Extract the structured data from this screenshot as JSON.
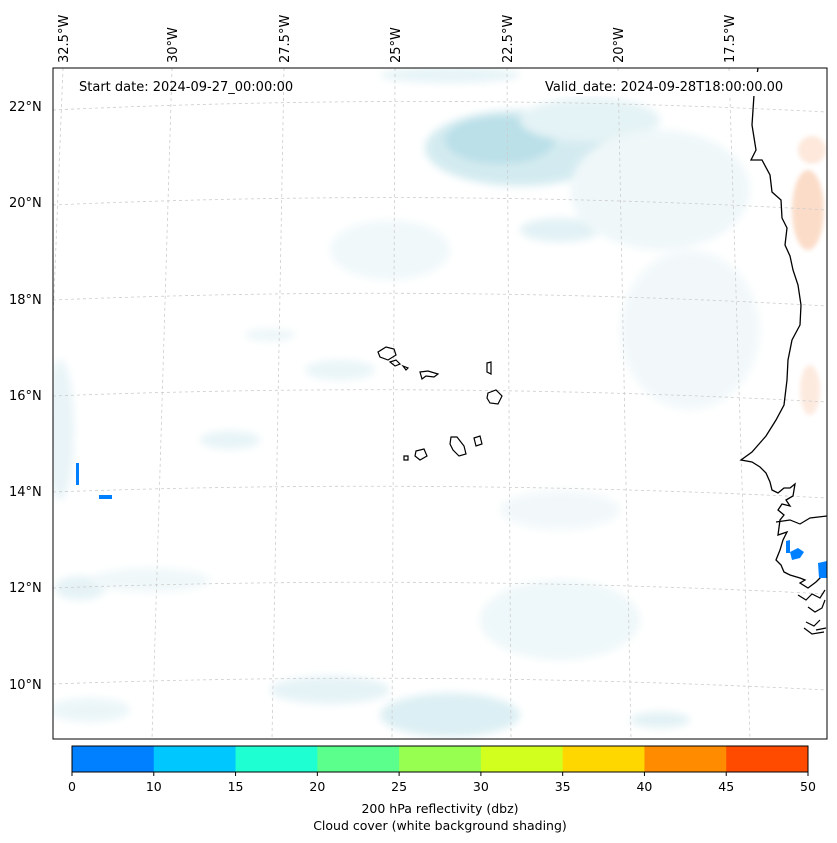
{
  "map": {
    "start_date_text": "Start date: 2024-09-27_00:00:00",
    "valid_date_text": "Valid_date: 2024-09-28T18:00:00.00",
    "longitude_labels": [
      "32.5°W",
      "30°W",
      "27.5°W",
      "25°W",
      "22.5°W",
      "20°W",
      "17.5°W"
    ],
    "latitude_labels": [
      "22°N",
      "20°N",
      "18°N",
      "16°N",
      "14°N",
      "12°N",
      "10°N"
    ],
    "coastline_color": "#000000",
    "gridline_color": "#cccccc"
  },
  "colorbar": {
    "label_line1": "200 hPa reflectivity (dbz)",
    "label_line2": "Cloud cover (white background shading)",
    "ticks": [
      "0",
      "10",
      "15",
      "20",
      "25",
      "30",
      "35",
      "40",
      "45",
      "50"
    ],
    "colors": [
      "#0080ff",
      "#00c8ff",
      "#1effd2",
      "#5aff8c",
      "#96ff50",
      "#d2ff1e",
      "#ffd700",
      "#ff8c00",
      "#ff4b00"
    ]
  }
}
